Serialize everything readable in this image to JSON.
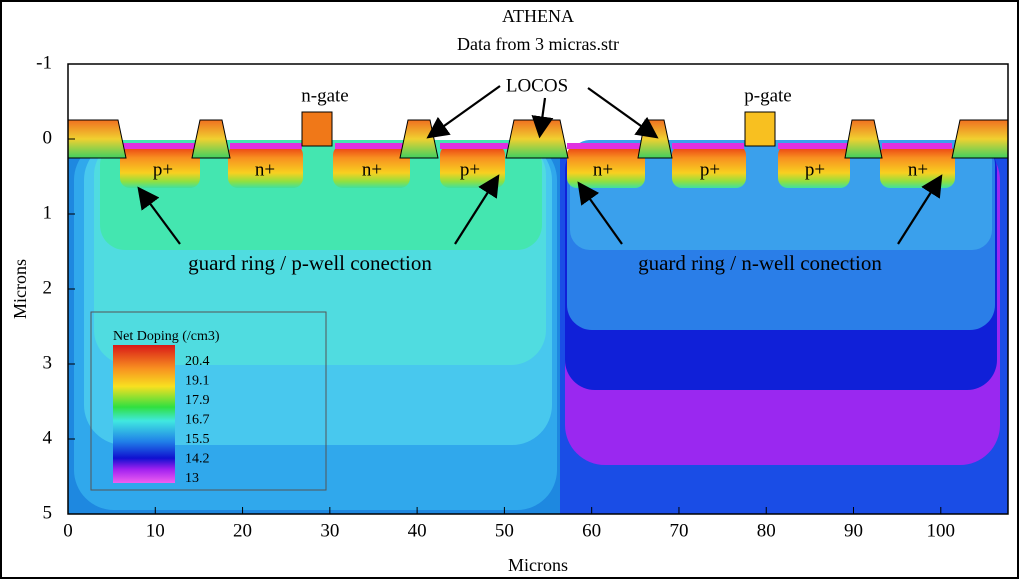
{
  "chart_data": {
    "type": "contour",
    "title": "ATHENA",
    "subtitle": "Data from 3 micras.str",
    "xlabel": "Microns",
    "ylabel": "Microns",
    "xlim": [
      0,
      107.7
    ],
    "ylim": [
      -1,
      5
    ],
    "xticks": [
      0,
      10,
      20,
      30,
      40,
      50,
      60,
      70,
      80,
      90,
      100
    ],
    "yticks": [
      -1,
      0,
      1,
      2,
      3,
      4,
      5
    ],
    "legend": {
      "title": "Net Doping (/cm3)",
      "levels": [
        20.4,
        19.1,
        17.9,
        16.7,
        15.5,
        14.2,
        13
      ]
    },
    "annotations": [
      "n-gate",
      "LOCOS",
      "p-gate",
      "p+",
      "n+",
      "n+",
      "p+",
      "n+",
      "p+",
      "p+",
      "n+",
      "guard ring / p-well conection",
      "guard ring / n-well conection"
    ]
  }
}
